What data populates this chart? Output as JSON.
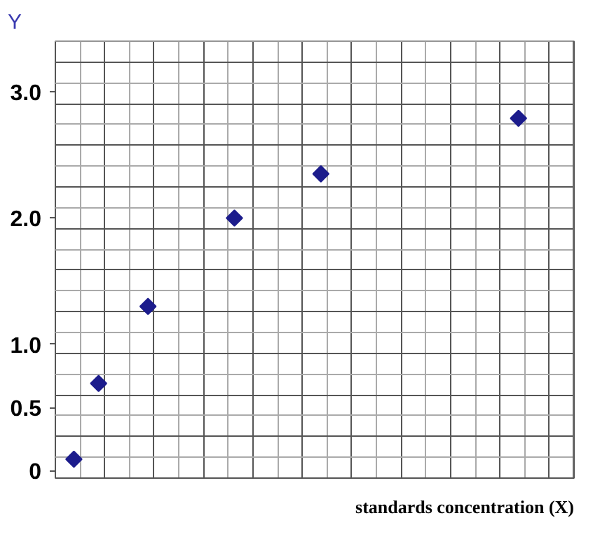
{
  "chart_data": {
    "type": "scatter",
    "xlabel": "standards concentration (X)",
    "ylabel": "Y",
    "categories": [
      null,
      null,
      null,
      null,
      null,
      null,
      null,
      null,
      null,
      null,
      null,
      null,
      null,
      null,
      null,
      null,
      null,
      null,
      null,
      null,
      null,
      null,
      null,
      null,
      null,
      null,
      null,
      null,
      null,
      null,
      null,
      null,
      null,
      null,
      null,
      null,
      null,
      null,
      null,
      null,
      null,
      null
    ],
    "series": [
      {
        "color": "#1c1c8c",
        "values": [
          null,
          0.09,
          null,
          0.69,
          null,
          null,
          null,
          1.3,
          null,
          null,
          null,
          null,
          null,
          null,
          2.0,
          null,
          null,
          null,
          null,
          null,
          null,
          2.35,
          null,
          null,
          null,
          null,
          null,
          null,
          null,
          null,
          null,
          null,
          null,
          null,
          null,
          null,
          null,
          2.79,
          null,
          null,
          null,
          null
        ]
      }
    ],
    "ylim": [
      -0.06,
      3.4
    ],
    "yticks": [
      0,
      0.5,
      {
        "value": 1,
        "label": "1.0"
      },
      {
        "value": 2,
        "label": "2.0"
      },
      {
        "value": 3,
        "label": "3.0"
      }
    ],
    "grid": true,
    "marker": "diamond"
  }
}
